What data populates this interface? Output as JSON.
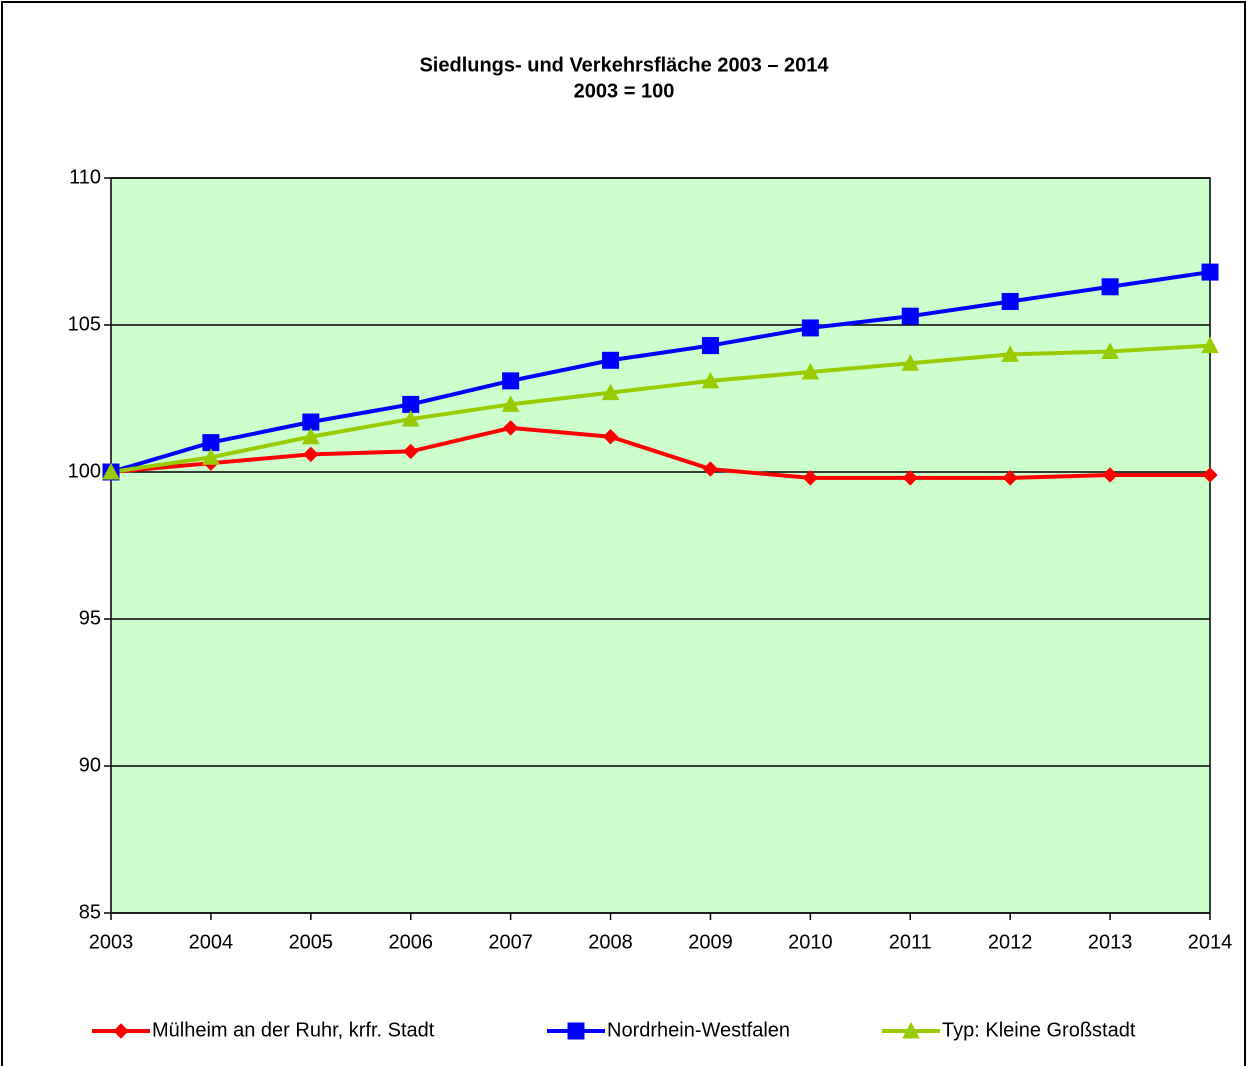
{
  "chart_data": {
    "type": "line",
    "title": "Siedlungs- und Verkehrsfläche 2003 – 2014",
    "subtitle": "2003 = 100",
    "categories": [
      "2003",
      "2004",
      "2005",
      "2006",
      "2007",
      "2008",
      "2009",
      "2010",
      "2011",
      "2012",
      "2013",
      "2014"
    ],
    "series": [
      {
        "name": "Mülheim an der Ruhr, krfr. Stadt",
        "color": "#ff0000",
        "marker": "diamond",
        "values": [
          100,
          100.3,
          100.6,
          100.7,
          101.5,
          101.2,
          100.1,
          99.8,
          99.8,
          99.8,
          99.9,
          99.9
        ]
      },
      {
        "name": "Nordrhein-Westfalen",
        "color": "#0000ff",
        "marker": "square",
        "values": [
          100,
          101.0,
          101.7,
          102.3,
          103.1,
          103.8,
          104.3,
          104.9,
          105.3,
          105.8,
          106.3,
          106.8
        ]
      },
      {
        "name": "Typ: Kleine Großstadt",
        "color": "#99cc00",
        "marker": "triangle",
        "values": [
          100,
          100.5,
          101.2,
          101.8,
          102.3,
          102.7,
          103.1,
          103.4,
          103.7,
          104.0,
          104.1,
          104.3
        ]
      }
    ],
    "ylim": [
      85,
      110
    ],
    "yticks": [
      85,
      90,
      95,
      100,
      105,
      110
    ],
    "grid": true,
    "plot_background": "#ccffcc",
    "legend": "bottom"
  }
}
